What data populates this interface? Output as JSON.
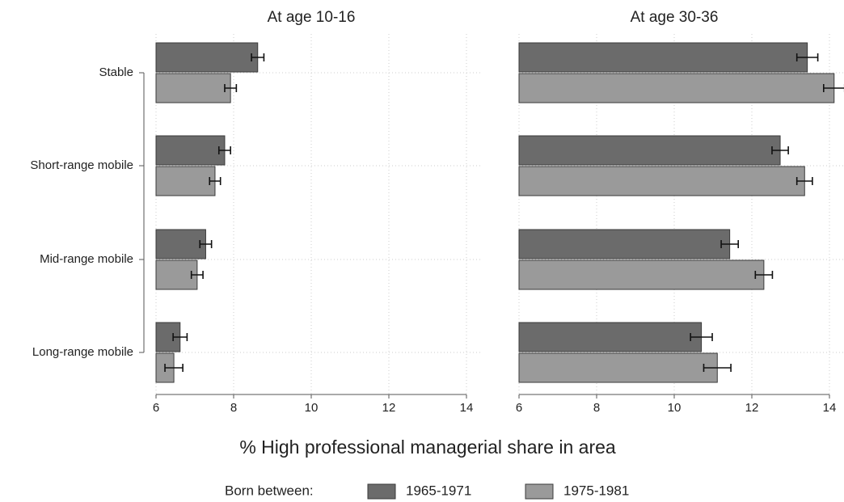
{
  "chart_data": [
    {
      "type": "bar",
      "orientation": "horizontal",
      "title": "At age 10-16",
      "categories": [
        "Stable",
        "Short-range mobile",
        "Mid-range mobile",
        "Long-range mobile"
      ],
      "series": [
        {
          "name": "1965-1971",
          "color": "#6b6b6b",
          "values": [
            8.62,
            7.77,
            7.28,
            6.62
          ],
          "errors": [
            0.16,
            0.15,
            0.15,
            0.18
          ]
        },
        {
          "name": "1975-1981",
          "color": "#9a9a9a",
          "values": [
            7.92,
            7.52,
            7.06,
            6.46
          ],
          "errors": [
            0.15,
            0.14,
            0.15,
            0.23
          ]
        }
      ],
      "xlim": [
        6,
        14
      ],
      "xticks": [
        6,
        8,
        10,
        12,
        14
      ],
      "grid": true
    },
    {
      "type": "bar",
      "orientation": "horizontal",
      "title": "At age 30-36",
      "categories": [
        "Stable",
        "Short-range mobile",
        "Mid-range mobile",
        "Long-range mobile"
      ],
      "series": [
        {
          "name": "1965-1971",
          "color": "#6b6b6b",
          "values": [
            13.43,
            12.73,
            11.43,
            10.7
          ],
          "errors": [
            0.27,
            0.21,
            0.22,
            0.28
          ]
        },
        {
          "name": "1975-1981",
          "color": "#9a9a9a",
          "values": [
            14.12,
            13.36,
            12.31,
            11.11
          ],
          "errors": [
            0.27,
            0.2,
            0.22,
            0.35
          ]
        }
      ],
      "xlim": [
        6,
        14
      ],
      "xticks": [
        6,
        8,
        10,
        12,
        14
      ],
      "grid": true
    }
  ],
  "xlabel": "% High professional managerial share in area",
  "legend_title": "Born between:"
}
